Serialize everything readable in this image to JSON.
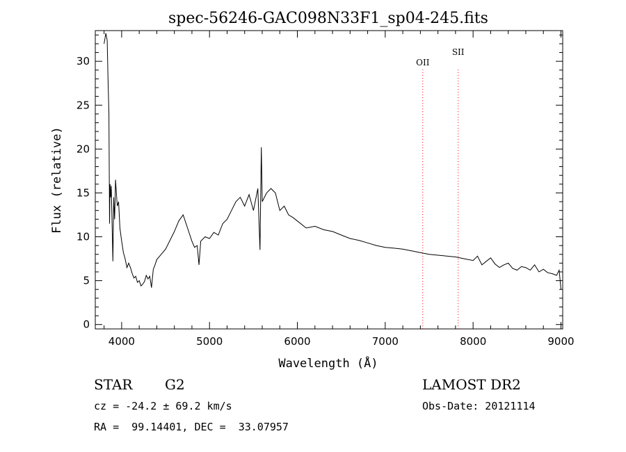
{
  "chart_data": {
    "type": "line",
    "title": "spec-56246-GAC098N33F1_sp04-245.fits",
    "xlabel": "Wavelength (Å)",
    "ylabel": "Flux (relative)",
    "xlim": [
      3700,
      9020
    ],
    "ylim": [
      -0.5,
      33.5
    ],
    "x_ticks": [
      4000,
      5000,
      6000,
      7000,
      8000,
      9000
    ],
    "y_ticks": [
      0,
      5,
      10,
      15,
      20,
      25,
      30
    ],
    "line_color": "#000000",
    "marker_color": "#ff0000",
    "series": [
      {
        "x": [
          3800,
          3820,
          3835,
          3845,
          3855,
          3862,
          3868,
          3875,
          3882,
          3890,
          3900,
          3910,
          3920,
          3930,
          3940,
          3950,
          3965,
          3980,
          4000,
          4020,
          4040,
          4060,
          4080,
          4100,
          4120,
          4140,
          4160,
          4180,
          4200,
          4220,
          4240,
          4260,
          4280,
          4300,
          4320,
          4340,
          4360,
          4380,
          4400,
          4450,
          4500,
          4550,
          4600,
          4650,
          4700,
          4750,
          4800,
          4830,
          4860,
          4880,
          4900,
          4950,
          5000,
          5050,
          5100,
          5150,
          5200,
          5250,
          5300,
          5350,
          5400,
          5450,
          5500,
          5550,
          5575,
          5590,
          5600,
          5650,
          5700,
          5750,
          5800,
          5850,
          5900,
          5950,
          6000,
          6100,
          6200,
          6300,
          6400,
          6500,
          6600,
          6700,
          6800,
          6900,
          7000,
          7100,
          7200,
          7300,
          7400,
          7500,
          7600,
          7700,
          7800,
          7900,
          8000,
          8050,
          8100,
          8150,
          8200,
          8250,
          8300,
          8350,
          8400,
          8450,
          8500,
          8550,
          8600,
          8650,
          8700,
          8750,
          8800,
          8850,
          8900,
          8950,
          8980,
          9000
        ],
        "y": [
          32.0,
          33.2,
          32.4,
          28.0,
          24.0,
          11.5,
          16.0,
          14.5,
          15.8,
          12.0,
          7.2,
          14.5,
          12.0,
          16.5,
          15.0,
          13.5,
          14.0,
          11.0,
          9.5,
          8.2,
          7.5,
          6.5,
          7.0,
          6.5,
          5.8,
          5.3,
          5.5,
          4.8,
          5.0,
          4.4,
          4.6,
          4.9,
          5.6,
          5.2,
          5.5,
          4.2,
          6.3,
          6.8,
          7.4,
          8.0,
          8.6,
          9.6,
          10.6,
          11.8,
          12.5,
          11.0,
          9.5,
          8.8,
          9.0,
          6.8,
          9.5,
          10.0,
          9.8,
          10.5,
          10.2,
          11.5,
          12.0,
          13.0,
          14.0,
          14.5,
          13.5,
          14.8,
          13.0,
          15.5,
          8.5,
          20.2,
          14.0,
          15.0,
          15.5,
          15.0,
          13.0,
          13.5,
          12.5,
          12.2,
          11.8,
          11.0,
          11.2,
          10.8,
          10.6,
          10.2,
          9.8,
          9.6,
          9.3,
          9.0,
          8.8,
          8.7,
          8.6,
          8.4,
          8.2,
          8.0,
          7.9,
          7.8,
          7.7,
          7.5,
          7.3,
          7.8,
          6.8,
          7.2,
          7.6,
          6.9,
          6.5,
          6.8,
          7.0,
          6.4,
          6.2,
          6.6,
          6.5,
          6.2,
          6.8,
          6.0,
          6.3,
          5.9,
          5.8,
          5.6,
          6.2,
          4.0
        ]
      }
    ],
    "lines": [
      {
        "label": "OII",
        "x": 7427
      },
      {
        "label": "SII",
        "x": 7830
      }
    ]
  },
  "info": {
    "class_label": "STAR",
    "subclass_label": "G2",
    "survey": "LAMOST DR2",
    "cz": "cz = -24.2 ± 69.2 km/s",
    "obs_date": "Obs-Date: 20121114",
    "coords": "RA =  99.14401, DEC =  33.07957"
  }
}
